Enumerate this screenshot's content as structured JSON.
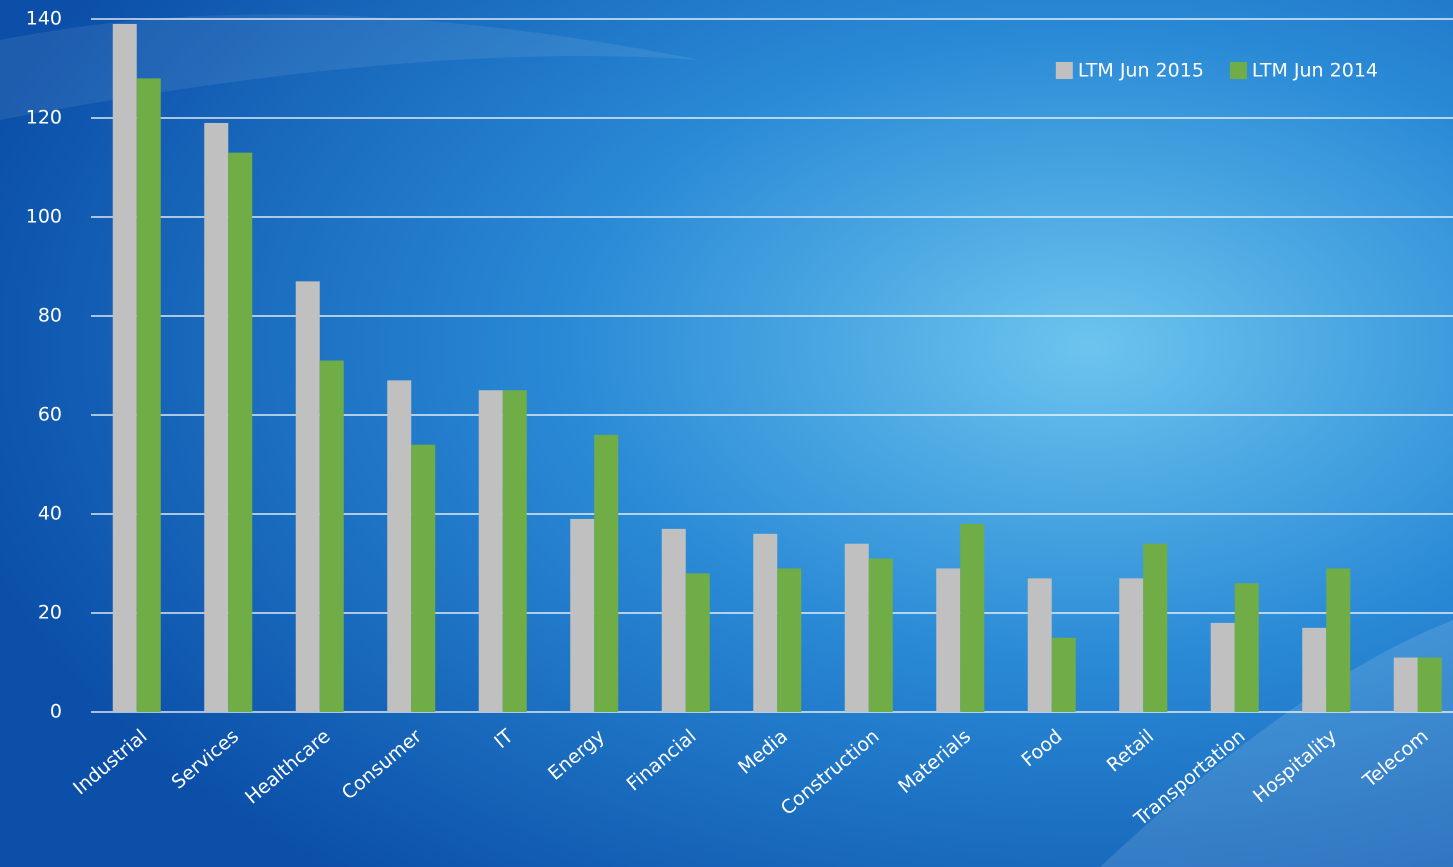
{
  "chart_data": {
    "type": "bar",
    "categories": [
      "Industrial",
      "Services",
      "Healthcare",
      "Consumer",
      "IT",
      "Energy",
      "Financial",
      "Media",
      "Construction",
      "Materials",
      "Food",
      "Retail",
      "Transportation",
      "Hospitality",
      "Telecom"
    ],
    "series": [
      {
        "name": "LTM Jun 2015",
        "color": "#c0c0c0",
        "values": [
          139,
          119,
          87,
          67,
          65,
          39,
          37,
          36,
          34,
          29,
          27,
          27,
          18,
          17,
          11
        ]
      },
      {
        "name": "LTM Jun 2014",
        "color": "#70ad47",
        "values": [
          128,
          113,
          71,
          54,
          65,
          56,
          28,
          29,
          31,
          38,
          15,
          34,
          26,
          29,
          11
        ]
      }
    ],
    "ylim": [
      0,
      140
    ],
    "yticks": [
      0,
      20,
      40,
      60,
      80,
      100,
      120,
      140
    ],
    "grid": true,
    "legend": "top-right"
  }
}
